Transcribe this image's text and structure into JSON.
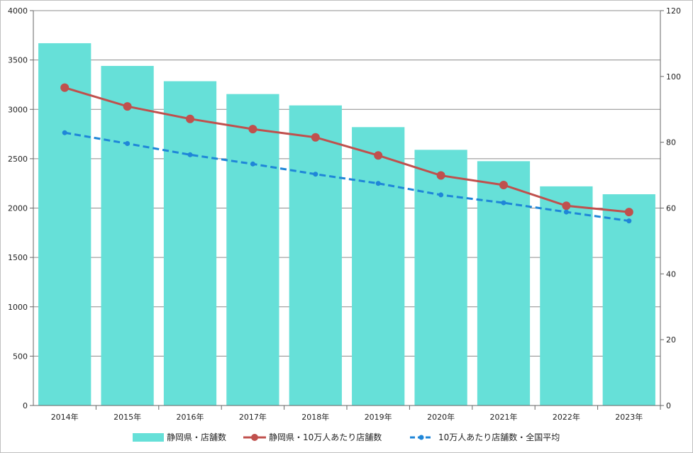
{
  "chart_data": {
    "type": "bar",
    "categories": [
      "2014年",
      "2015年",
      "2016年",
      "2017年",
      "2018年",
      "2019年",
      "2020年",
      "2021年",
      "2022年",
      "2023年"
    ],
    "series": [
      {
        "name": "静岡県・店舗数",
        "type": "bar",
        "axis": "left",
        "color": "#66e0d8",
        "values": [
          3670,
          3440,
          3285,
          3155,
          3040,
          2820,
          2590,
          2475,
          2220,
          2140
        ]
      },
      {
        "name": "静岡県・10万人あたり店舗数",
        "type": "line",
        "axis": "right",
        "color": "#c0504d",
        "line_style": "solid",
        "values": [
          96.6,
          90.9,
          87.1,
          84.0,
          81.5,
          76.0,
          69.9,
          67.0,
          60.7,
          58.8
        ]
      },
      {
        "name": "10万人あたり店舗数・全国平均",
        "type": "line",
        "axis": "right",
        "color": "#1f86d8",
        "line_style": "dashed",
        "values": [
          82.9,
          79.6,
          76.2,
          73.4,
          70.3,
          67.5,
          64.0,
          61.6,
          58.8,
          56.1
        ]
      }
    ],
    "y_left": {
      "ylim": [
        0,
        4000
      ],
      "ticks": [
        "0",
        "500",
        "1000",
        "1500",
        "2000",
        "2500",
        "3000",
        "3500",
        "4000"
      ]
    },
    "y_right": {
      "ylim": [
        0,
        120
      ],
      "ticks": [
        "0",
        "20",
        "40",
        "60",
        "80",
        "100",
        "120"
      ]
    },
    "grid": true,
    "legend_position": "bottom"
  }
}
